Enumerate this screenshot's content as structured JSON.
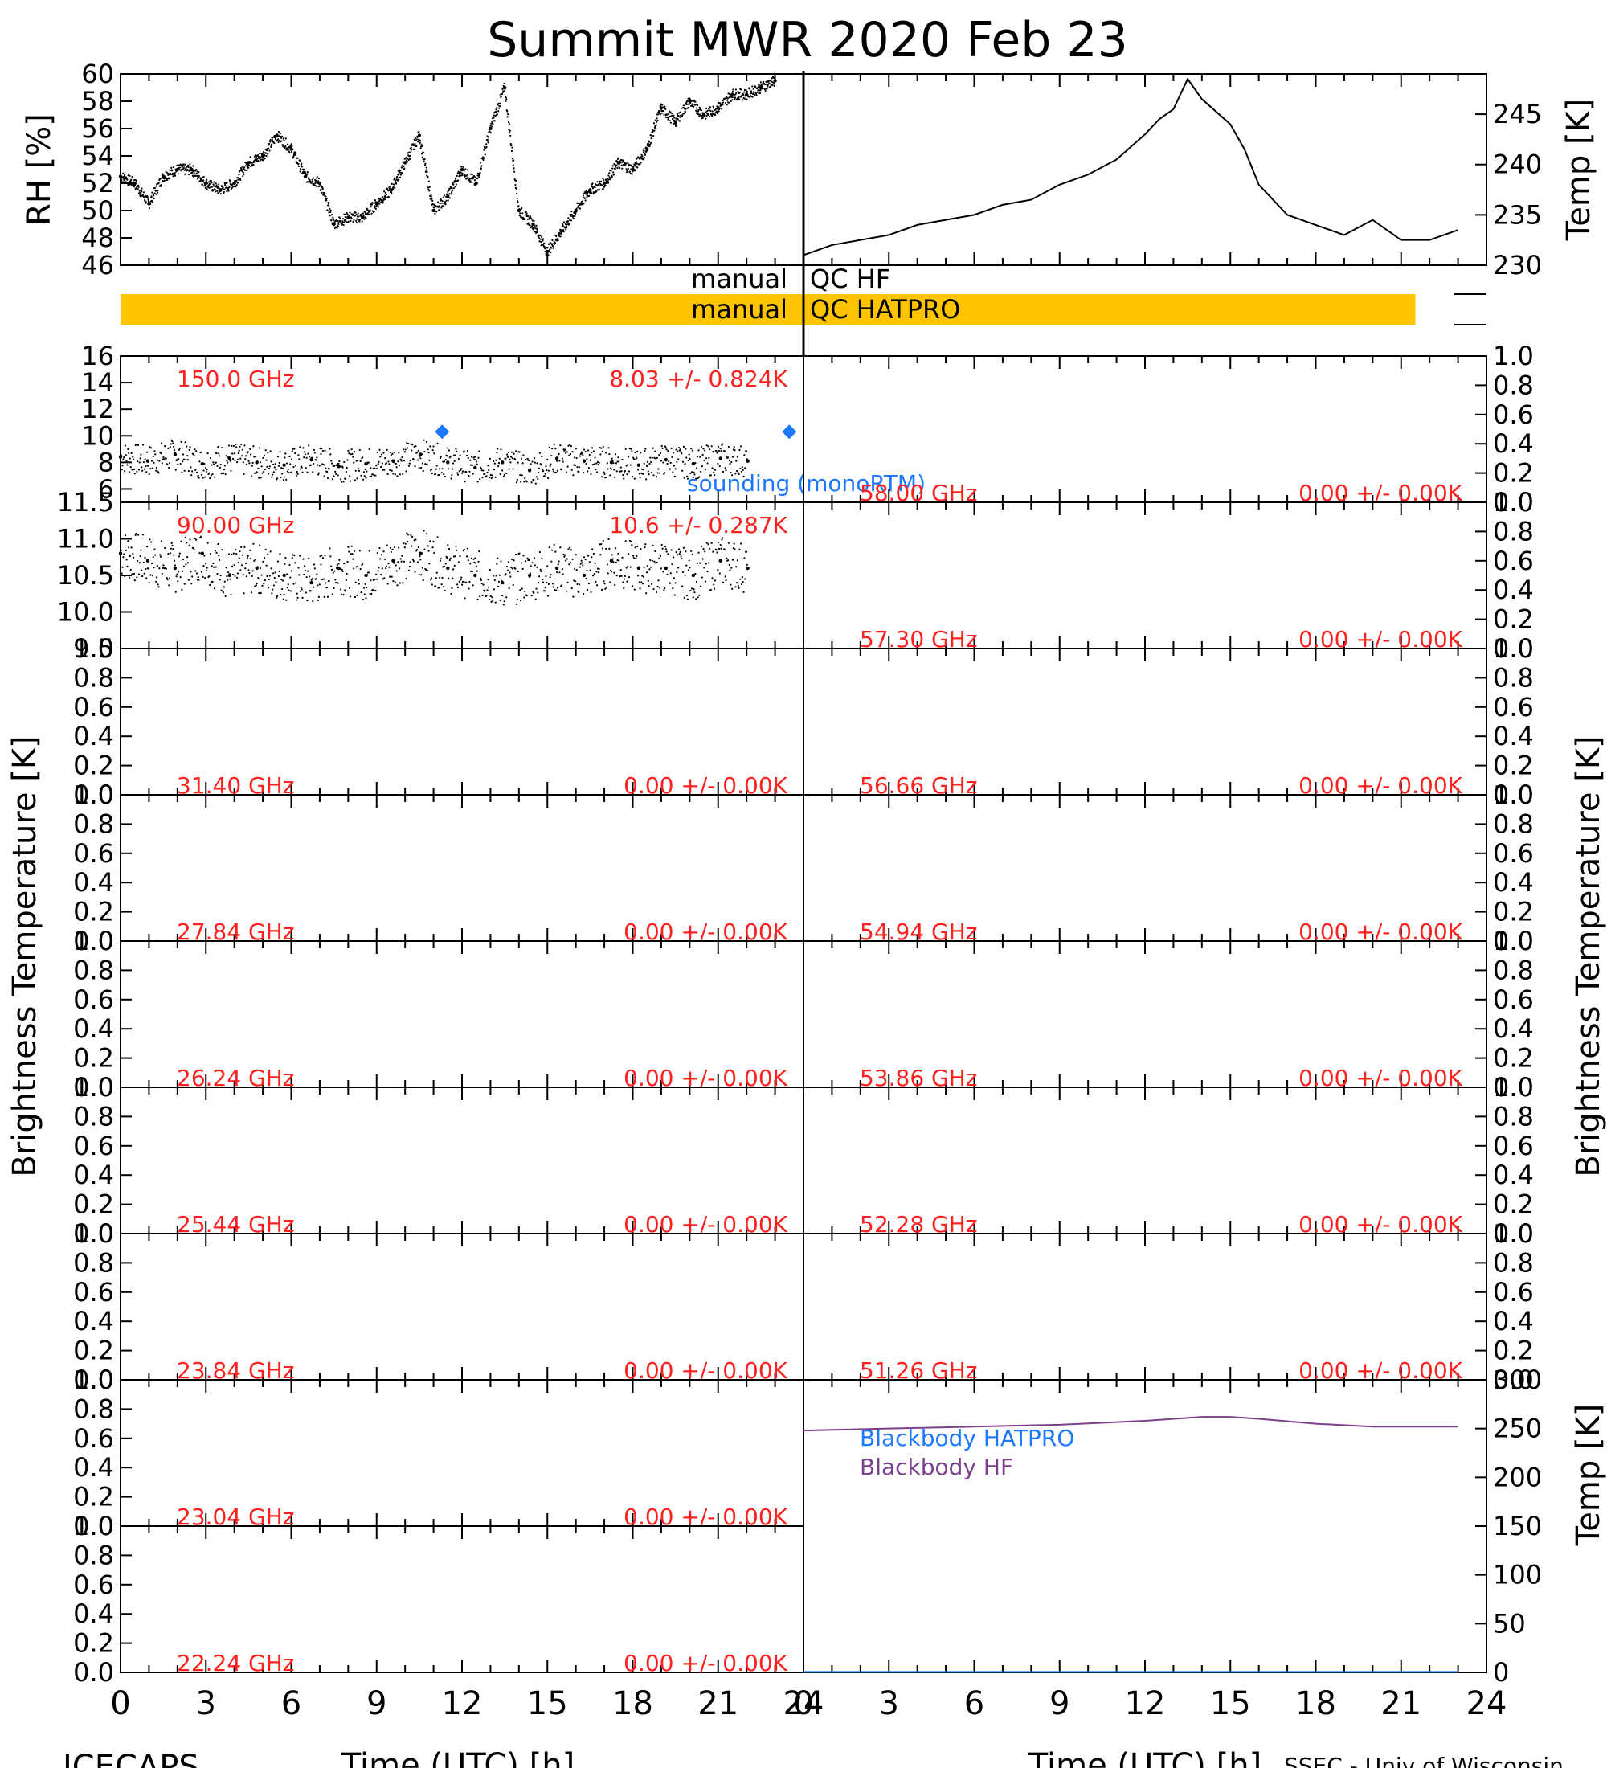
{
  "title": "Summit MWR 2020 Feb 23",
  "footer": {
    "left": "ICECAPS",
    "right": "SSEC - Univ of Wisconsin"
  },
  "labels": {
    "xlabel": "Time (UTC) [h]",
    "ylabel_left": "Brightness Temperature [K]",
    "ylabel_right": "Brightness Temperature [K]",
    "rh_ylabel": "RH [%]",
    "temp_ylabel": "Temp [K]",
    "bb_ylabel": "Temp [K]"
  },
  "qc": {
    "hf_label_left": "manual",
    "hf_label_right": "QC HF",
    "hatpro_label_left": "manual",
    "hatpro_label_right": "QC HATPRO",
    "hf_flag_hours": [],
    "hatpro_flag_hours": [
      0,
      22.75
    ],
    "flag_color": "#FFC400"
  },
  "colors": {
    "annotation": "#FF2020",
    "sounding": "#1E78FF",
    "bb_hatpro": "#1E78FF",
    "bb_hf": "#7B3F8C",
    "frame": "#000000"
  },
  "x_axis": {
    "range": [
      0,
      24
    ],
    "ticks": [
      "0",
      "3",
      "6",
      "9",
      "12",
      "15",
      "18",
      "21",
      "24"
    ]
  },
  "chart_data": [
    {
      "type": "scatter",
      "panel": "rh",
      "ylabel": "RH [%]",
      "xlim": [
        0,
        24
      ],
      "ylim": [
        46,
        60
      ],
      "yticks": [
        "46",
        "48",
        "50",
        "52",
        "54",
        "56",
        "58",
        "60"
      ],
      "x": [
        0,
        0.5,
        1,
        1.5,
        2,
        2.5,
        3,
        3.5,
        4,
        4.5,
        5,
        5.5,
        6,
        6.5,
        7,
        7.5,
        8,
        8.5,
        9,
        9.5,
        10,
        10.5,
        11,
        11.5,
        12,
        12.5,
        13,
        13.5,
        14,
        14.5,
        15,
        15.5,
        16,
        16.5,
        17,
        17.5,
        18,
        18.5,
        19,
        19.5,
        20,
        20.5,
        21,
        21.5,
        22,
        22.5,
        23
      ],
      "values": [
        52.5,
        52.0,
        50.5,
        52.5,
        53.0,
        53.0,
        52.0,
        51.5,
        52.0,
        53.5,
        54.0,
        55.5,
        54.5,
        52.5,
        52.0,
        49.0,
        49.5,
        49.5,
        50.5,
        51.5,
        53.5,
        55.5,
        50.0,
        51.0,
        53.0,
        52.0,
        56.0,
        59.0,
        50.0,
        49.0,
        47.0,
        48.5,
        50.0,
        51.5,
        52.0,
        53.5,
        53.0,
        54.5,
        57.5,
        56.5,
        58.0,
        57.0,
        57.5,
        58.5,
        58.5,
        59.0,
        59.5
      ]
    },
    {
      "type": "line",
      "panel": "air_temp",
      "ylabel": "Temp [K]",
      "xlim": [
        0,
        24
      ],
      "ylim": [
        230,
        249
      ],
      "yticks": [
        "230",
        "235",
        "240",
        "245"
      ],
      "x": [
        0,
        1,
        2,
        3,
        4,
        5,
        6,
        7,
        8,
        9,
        10,
        11,
        12,
        12.5,
        13,
        13.5,
        14,
        15,
        15.5,
        16,
        17,
        18,
        19,
        20,
        21,
        22,
        23
      ],
      "values": [
        231,
        232,
        232.5,
        233,
        234,
        234.5,
        235,
        236,
        236.5,
        238,
        239,
        240.5,
        243,
        244.5,
        245.5,
        248.5,
        246.5,
        244,
        241.5,
        238,
        235,
        234,
        233,
        234.5,
        232.5,
        232.5,
        233.5
      ]
    },
    {
      "type": "scatter",
      "panel": "150.0 GHz",
      "freq_label": "150.0 GHz",
      "stat_label": "8.03 +/- 0.824K",
      "xlim": [
        0,
        24
      ],
      "ylim": [
        5,
        16
      ],
      "yticks": [
        "6",
        "8",
        "10",
        "12",
        "14",
        "16"
      ],
      "x": [
        0,
        1,
        2,
        3,
        4,
        5,
        6,
        7,
        8,
        9,
        10,
        11,
        12,
        13,
        14,
        15,
        16,
        17,
        18,
        19,
        20,
        21,
        22,
        23
      ],
      "values": [
        8.4,
        8.1,
        8.6,
        7.9,
        8.3,
        8.0,
        7.8,
        8.2,
        7.7,
        7.9,
        8.1,
        8.6,
        8.0,
        7.6,
        8.0,
        7.4,
        8.3,
        8.1,
        8.0,
        7.8,
        8.2,
        7.9,
        8.3,
        8.1
      ],
      "sounding_label": "sounding (monoRTM)",
      "sounding_x": [
        11.3,
        23.5
      ],
      "sounding_y": [
        10.3,
        10.3
      ]
    },
    {
      "type": "scatter",
      "panel": "90.00 GHz",
      "freq_label": "90.00 GHz",
      "stat_label": "10.6 +/- 0.287K",
      "xlim": [
        0,
        24
      ],
      "ylim": [
        9.5,
        11.5
      ],
      "yticks": [
        "9.5",
        "10.0",
        "10.5",
        "11.0",
        "11.5"
      ],
      "x": [
        0,
        1,
        2,
        3,
        4,
        5,
        6,
        7,
        8,
        9,
        10,
        11,
        12,
        13,
        14,
        15,
        16,
        17,
        18,
        19,
        20,
        21,
        22,
        23
      ],
      "values": [
        10.8,
        10.7,
        10.6,
        10.8,
        10.5,
        10.6,
        10.5,
        10.4,
        10.6,
        10.5,
        10.7,
        10.8,
        10.6,
        10.5,
        10.4,
        10.5,
        10.6,
        10.5,
        10.7,
        10.6,
        10.6,
        10.5,
        10.7,
        10.6
      ]
    },
    {
      "type": "scatter",
      "panel": "31.40 GHz",
      "freq_label": "31.40 GHz",
      "stat_label": "0.00 +/- 0.00K",
      "xlim": [
        0,
        24
      ],
      "ylim": [
        0,
        1
      ],
      "yticks": [
        "0.0",
        "0.2",
        "0.4",
        "0.6",
        "0.8",
        "1.0"
      ],
      "values": []
    },
    {
      "type": "scatter",
      "panel": "27.84 GHz",
      "freq_label": "27.84 GHz",
      "stat_label": "0.00 +/- 0.00K",
      "xlim": [
        0,
        24
      ],
      "ylim": [
        0,
        1
      ],
      "yticks": [
        "0.0",
        "0.2",
        "0.4",
        "0.6",
        "0.8",
        "1.0"
      ],
      "values": []
    },
    {
      "type": "scatter",
      "panel": "26.24 GHz",
      "freq_label": "26.24 GHz",
      "stat_label": "0.00 +/- 0.00K",
      "xlim": [
        0,
        24
      ],
      "ylim": [
        0,
        1
      ],
      "yticks": [
        "0.0",
        "0.2",
        "0.4",
        "0.6",
        "0.8",
        "1.0"
      ],
      "values": []
    },
    {
      "type": "scatter",
      "panel": "25.44 GHz",
      "freq_label": "25.44 GHz",
      "stat_label": "0.00 +/- 0.00K",
      "xlim": [
        0,
        24
      ],
      "ylim": [
        0,
        1
      ],
      "yticks": [
        "0.0",
        "0.2",
        "0.4",
        "0.6",
        "0.8",
        "1.0"
      ],
      "values": []
    },
    {
      "type": "scatter",
      "panel": "23.84 GHz",
      "freq_label": "23.84 GHz",
      "stat_label": "0.00 +/- 0.00K",
      "xlim": [
        0,
        24
      ],
      "ylim": [
        0,
        1
      ],
      "yticks": [
        "0.0",
        "0.2",
        "0.4",
        "0.6",
        "0.8",
        "1.0"
      ],
      "values": []
    },
    {
      "type": "scatter",
      "panel": "23.04 GHz",
      "freq_label": "23.04 GHz",
      "stat_label": "0.00 +/- 0.00K",
      "xlim": [
        0,
        24
      ],
      "ylim": [
        0,
        1
      ],
      "yticks": [
        "0.0",
        "0.2",
        "0.4",
        "0.6",
        "0.8",
        "1.0"
      ],
      "values": []
    },
    {
      "type": "scatter",
      "panel": "22.24 GHz",
      "freq_label": "22.24 GHz",
      "stat_label": "0.00 +/- 0.00K",
      "xlim": [
        0,
        24
      ],
      "ylim": [
        0,
        1
      ],
      "yticks": [
        "0.0",
        "0.2",
        "0.4",
        "0.6",
        "0.8",
        "1.0"
      ],
      "values": []
    },
    {
      "type": "scatter",
      "panel": "58.00 GHz",
      "freq_label": "58.00 GHz",
      "stat_label": "0.00 +/- 0.00K",
      "xlim": [
        0,
        24
      ],
      "ylim": [
        0,
        1
      ],
      "yticks": [
        "0.0",
        "0.2",
        "0.4",
        "0.6",
        "0.8",
        "1.0"
      ],
      "values": []
    },
    {
      "type": "scatter",
      "panel": "57.30 GHz",
      "freq_label": "57.30 GHz",
      "stat_label": "0.00 +/- 0.00K",
      "xlim": [
        0,
        24
      ],
      "ylim": [
        0,
        1
      ],
      "yticks": [
        "0.0",
        "0.2",
        "0.4",
        "0.6",
        "0.8",
        "1.0"
      ],
      "values": []
    },
    {
      "type": "scatter",
      "panel": "56.66 GHz",
      "freq_label": "56.66 GHz",
      "stat_label": "0.00 +/- 0.00K",
      "xlim": [
        0,
        24
      ],
      "ylim": [
        0,
        1
      ],
      "yticks": [
        "0.0",
        "0.2",
        "0.4",
        "0.6",
        "0.8",
        "1.0"
      ],
      "values": []
    },
    {
      "type": "scatter",
      "panel": "54.94 GHz",
      "freq_label": "54.94 GHz",
      "stat_label": "0.00 +/- 0.00K",
      "xlim": [
        0,
        24
      ],
      "ylim": [
        0,
        1
      ],
      "yticks": [
        "0.0",
        "0.2",
        "0.4",
        "0.6",
        "0.8",
        "1.0"
      ],
      "values": []
    },
    {
      "type": "scatter",
      "panel": "53.86 GHz",
      "freq_label": "53.86 GHz",
      "stat_label": "0.00 +/- 0.00K",
      "xlim": [
        0,
        24
      ],
      "ylim": [
        0,
        1
      ],
      "yticks": [
        "0.0",
        "0.2",
        "0.4",
        "0.6",
        "0.8",
        "1.0"
      ],
      "values": []
    },
    {
      "type": "scatter",
      "panel": "52.28 GHz",
      "freq_label": "52.28 GHz",
      "stat_label": "0.00 +/- 0.00K",
      "xlim": [
        0,
        24
      ],
      "ylim": [
        0,
        1
      ],
      "yticks": [
        "0.0",
        "0.2",
        "0.4",
        "0.6",
        "0.8",
        "1.0"
      ],
      "values": []
    },
    {
      "type": "scatter",
      "panel": "51.26 GHz",
      "freq_label": "51.26 GHz",
      "stat_label": "0.00 +/- 0.00K",
      "xlim": [
        0,
        24
      ],
      "ylim": [
        0,
        1
      ],
      "yticks": [
        "0.0",
        "0.2",
        "0.4",
        "0.6",
        "0.8",
        "1.0"
      ],
      "values": []
    },
    {
      "type": "line",
      "panel": "blackbody",
      "ylabel": "Temp [K]",
      "xlim": [
        0,
        24
      ],
      "ylim": [
        0,
        300
      ],
      "yticks": [
        "0",
        "50",
        "100",
        "150",
        "200",
        "250",
        "300"
      ],
      "series": [
        {
          "name": "Blackbody HATPRO",
          "x": [
            0,
            23
          ],
          "values": [
            0.5,
            0.5
          ]
        },
        {
          "name": "Blackbody HF",
          "x": [
            0,
            3,
            6,
            9,
            12,
            14,
            15,
            16,
            18,
            20,
            23
          ],
          "values": [
            248,
            250,
            252,
            254,
            258,
            262,
            262,
            260,
            255,
            252,
            252
          ]
        }
      ]
    }
  ]
}
